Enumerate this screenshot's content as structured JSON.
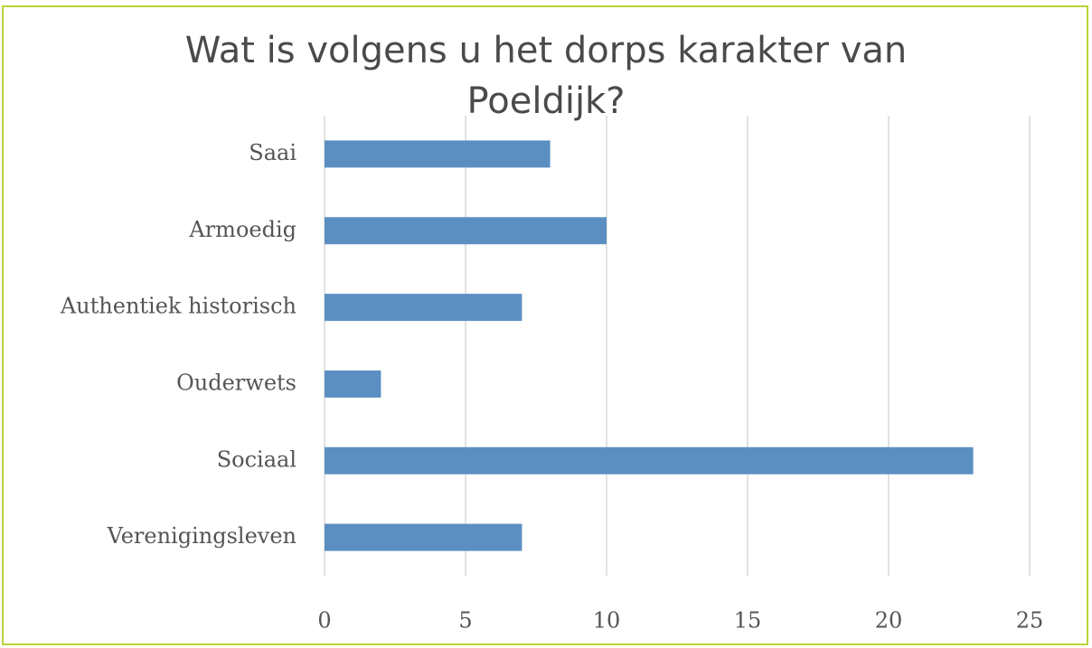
{
  "chart_data": {
    "type": "bar",
    "orientation": "horizontal",
    "title": "Wat is volgens u het dorps karakter van Poeldijk?",
    "categories": [
      "Saai",
      "Armoedig",
      "Authentiek historisch",
      "Ouderwets",
      "Sociaal",
      "Verenigingsleven"
    ],
    "values": [
      8,
      10,
      7,
      2,
      23,
      7
    ],
    "color": "#5b8fc2",
    "xlim": [
      0,
      25
    ],
    "xticks": [
      0,
      5,
      10,
      15,
      20,
      25
    ],
    "grid": true
  }
}
